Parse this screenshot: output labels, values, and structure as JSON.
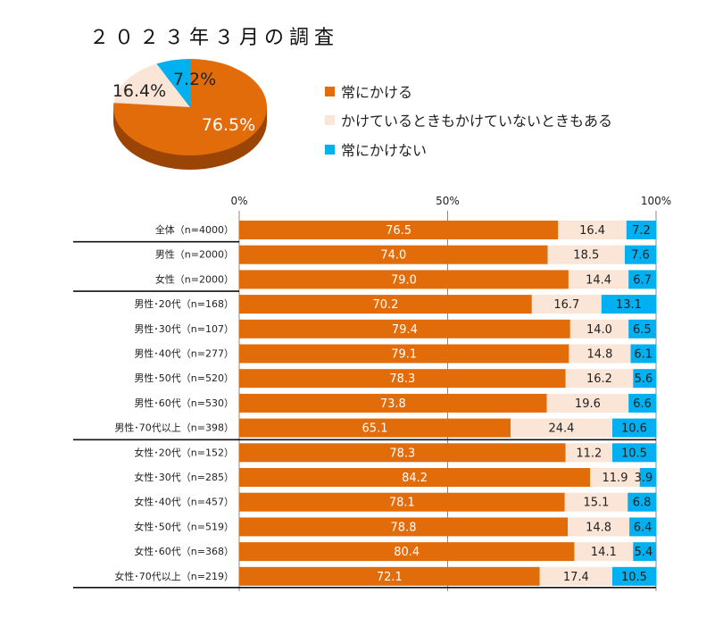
{
  "colors": {
    "always": "#E36C0A",
    "sometimes": "#FBE5D6",
    "never": "#00B0F0",
    "always_side": "#9A4506"
  },
  "chart_data": [
    {
      "type": "pie",
      "title": "２０２３年３月の調査",
      "slices": [
        {
          "name": "常にかける",
          "value": 76.5,
          "label": "76.5%"
        },
        {
          "name": "かけているときもかけていないときもある",
          "value": 16.4,
          "label": "16.4%"
        },
        {
          "name": "常にかけない",
          "value": 7.2,
          "label": "7.2%"
        }
      ],
      "legend": [
        "常にかける",
        "かけているときもかけていないときもある",
        "常にかけない"
      ],
      "legend_placement": "right"
    },
    {
      "type": "bar",
      "orientation": "horizontal",
      "stacked": true,
      "xlim": [
        0,
        100
      ],
      "x_ticks": [
        "0%",
        "50%",
        "100%"
      ],
      "grid": true,
      "categories": [
        "全体（n=4000）",
        "男性（n=2000）",
        "女性（n=2000）",
        "男性･20代（n=168）",
        "男性･30代（n=107）",
        "男性･40代（n=277）",
        "男性･50代（n=520）",
        "男性･60代（n=530）",
        "男性･70代以上（n=398）",
        "女性･20代（n=152）",
        "女性･30代（n=285）",
        "女性･40代（n=457）",
        "女性･50代（n=519）",
        "女性･60代（n=368）",
        "女性･70代以上（n=219）"
      ],
      "series": [
        {
          "name": "常にかける",
          "values": [
            76.5,
            74.0,
            79.0,
            70.2,
            79.4,
            79.1,
            78.3,
            73.8,
            65.1,
            78.3,
            84.2,
            78.1,
            78.8,
            80.4,
            72.1
          ]
        },
        {
          "name": "かけているときもかけていないときもある",
          "values": [
            16.4,
            18.5,
            14.4,
            16.7,
            14.0,
            14.8,
            16.2,
            19.6,
            24.4,
            11.2,
            11.9,
            15.1,
            14.8,
            14.1,
            17.4
          ]
        },
        {
          "name": "常にかけない",
          "values": [
            7.2,
            7.6,
            6.7,
            13.1,
            6.5,
            6.1,
            5.6,
            6.6,
            10.6,
            10.5,
            3.9,
            6.8,
            6.4,
            5.4,
            10.5
          ]
        }
      ]
    }
  ]
}
